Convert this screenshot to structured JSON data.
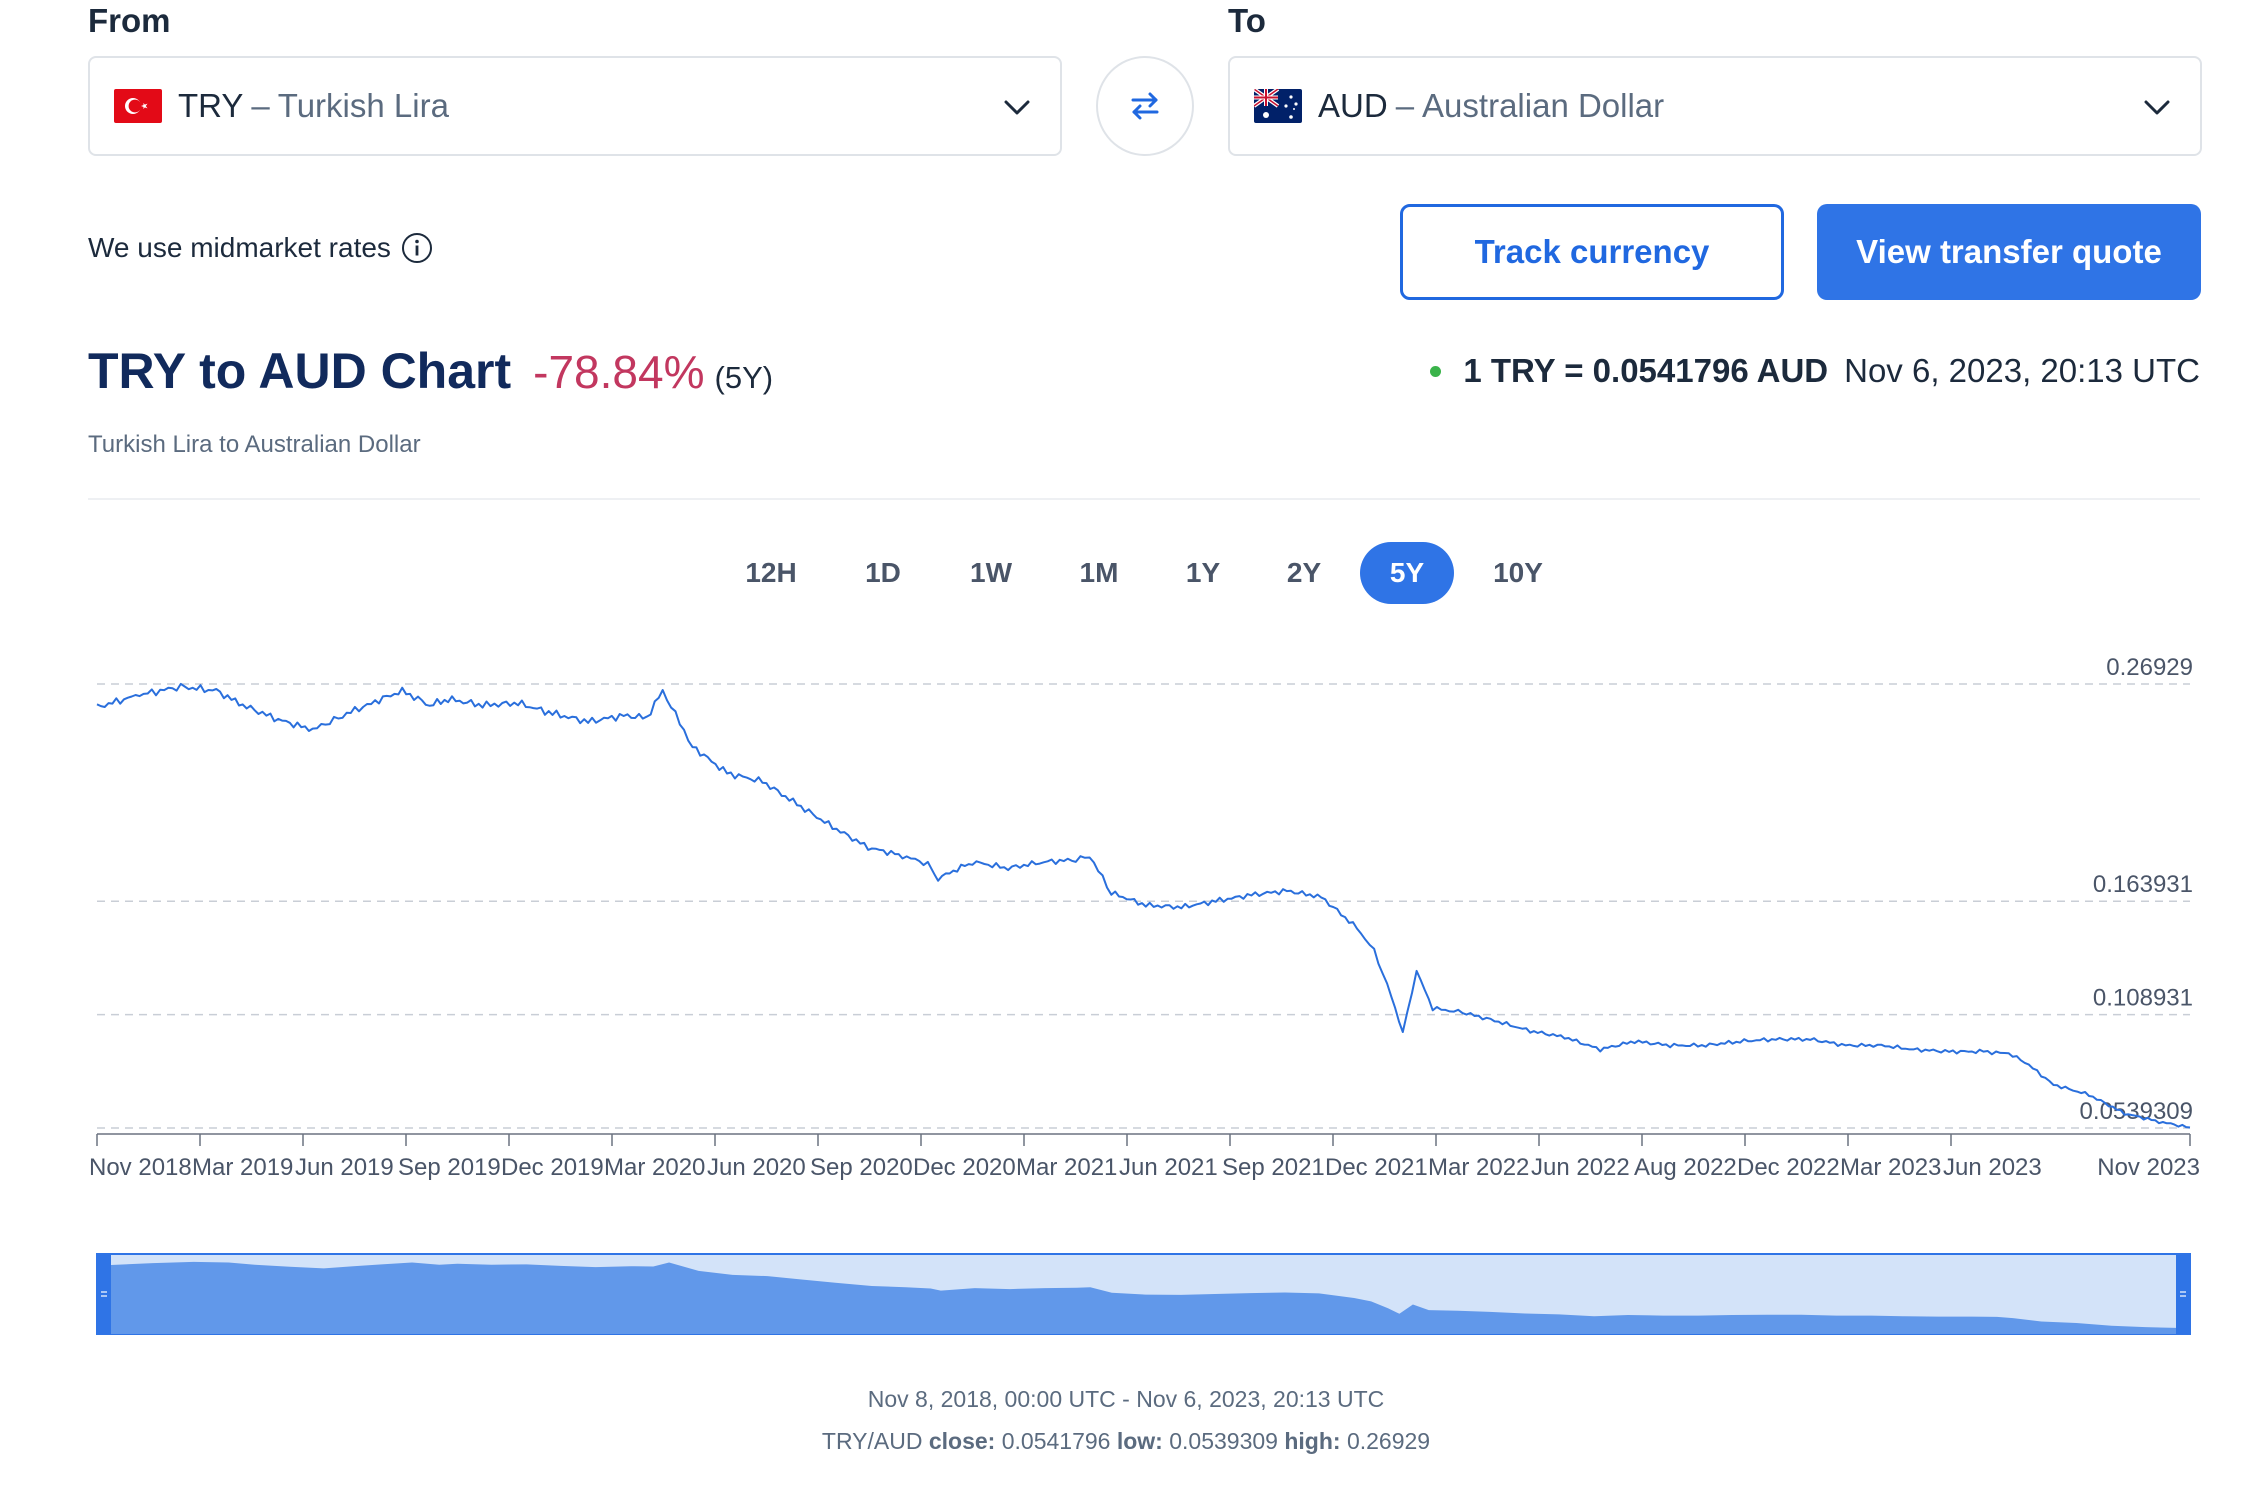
{
  "from": {
    "label": "From",
    "code": "TRY",
    "separator": "–",
    "name": "Turkish Lira",
    "flag": "turkey-flag-icon"
  },
  "to": {
    "label": "To",
    "code": "AUD",
    "separator": "–",
    "name": "Australian Dollar",
    "flag": "australia-flag-icon"
  },
  "swap_icon": "swap-arrows-icon",
  "midmarket_text": "We use midmarket rates",
  "buttons": {
    "track": "Track currency",
    "quote": "View transfer quote"
  },
  "header": {
    "title": "TRY to AUD Chart",
    "change": "-78.84%",
    "period": "(5Y)",
    "subtitle": "Turkish Lira to Australian Dollar",
    "rate": "1 TRY = 0.0541796 AUD",
    "rate_time": "Nov 6, 2023, 20:13 UTC"
  },
  "tabs": [
    "12H",
    "1D",
    "1W",
    "1M",
    "1Y",
    "2Y",
    "5Y",
    "10Y"
  ],
  "active_tab": "5Y",
  "colors": {
    "accent": "#2f74e6",
    "negative": "#c2375f",
    "live": "#3ab34a",
    "title": "#112a5c"
  },
  "footer": {
    "range": "Nov 8, 2018, 00:00 UTC - Nov 6, 2023, 20:13 UTC",
    "pair": "TRY/AUD",
    "close_label": "close:",
    "close": "0.0541796",
    "low_label": "low:",
    "low": "0.0539309",
    "high_label": "high:",
    "high": "0.26929"
  },
  "chart_data": {
    "type": "line",
    "x_ticks": [
      "Nov 2018",
      "Mar 2019",
      "Jun 2019",
      "Sep 2019",
      "Dec 2019",
      "Mar 2020",
      "Jun 2020",
      "Sep 2020",
      "Dec 2020",
      "Mar 2021",
      "Jun 2021",
      "Sep 2021",
      "Dec 2021",
      "Mar 2022",
      "Jun 2022",
      "Aug 2022",
      "Dec 2022",
      "Mar 2023",
      "Jun 2023",
      "Nov 2023"
    ],
    "y_ticks": [
      0.26929,
      0.163931,
      0.108931,
      0.0539309
    ],
    "grid": "dashed horizontal at y_ticks",
    "series": [
      {
        "x": [
          "2018-11-08",
          "2018-12-15",
          "2019-01-20",
          "2019-02-20",
          "2019-03-15",
          "2019-04-15",
          "2019-05-15",
          "2019-06-10",
          "2019-07-05",
          "2019-08-01",
          "2019-08-25",
          "2019-09-10",
          "2019-10-10",
          "2019-11-10",
          "2019-12-10",
          "2020-01-10",
          "2020-02-10",
          "2020-03-01",
          "2020-03-15",
          "2020-04-10",
          "2020-05-10",
          "2020-06-10",
          "2020-07-10",
          "2020-08-10",
          "2020-09-10",
          "2020-10-10",
          "2020-11-01",
          "2020-11-10",
          "2020-12-10",
          "2021-01-10",
          "2021-02-10",
          "2021-03-10",
          "2021-03-22",
          "2021-04-10",
          "2021-05-10",
          "2021-06-10",
          "2021-07-10",
          "2021-08-10",
          "2021-09-10",
          "2021-10-10",
          "2021-11-10",
          "2021-11-25",
          "2021-12-10",
          "2021-12-20",
          "2022-01-01",
          "2022-01-15",
          "2022-02-10",
          "2022-03-10",
          "2022-04-10",
          "2022-05-10",
          "2022-06-10",
          "2022-07-10",
          "2022-08-10",
          "2022-09-10",
          "2022-10-10",
          "2022-11-10",
          "2022-12-10",
          "2023-01-10",
          "2023-02-10",
          "2023-03-10",
          "2023-04-10",
          "2023-05-10",
          "2023-06-01",
          "2023-06-15",
          "2023-07-10",
          "2023-08-10",
          "2023-09-10",
          "2023-10-10",
          "2023-11-06"
        ],
        "y": [
          0.258,
          0.264,
          0.268,
          0.266,
          0.259,
          0.252,
          0.247,
          0.254,
          0.26,
          0.266,
          0.259,
          0.262,
          0.259,
          0.26,
          0.255,
          0.251,
          0.254,
          0.253,
          0.266,
          0.239,
          0.226,
          0.222,
          0.211,
          0.2,
          0.19,
          0.186,
          0.182,
          0.175,
          0.183,
          0.18,
          0.183,
          0.184,
          0.186,
          0.168,
          0.162,
          0.161,
          0.164,
          0.167,
          0.169,
          0.166,
          0.151,
          0.14,
          0.118,
          0.1,
          0.13,
          0.112,
          0.11,
          0.106,
          0.101,
          0.098,
          0.092,
          0.096,
          0.094,
          0.094,
          0.096,
          0.097,
          0.097,
          0.094,
          0.094,
          0.092,
          0.091,
          0.091,
          0.09,
          0.086,
          0.075,
          0.07,
          0.061,
          0.057,
          0.0541796
        ]
      }
    ],
    "ylim": [
      0.0539309,
      0.26929
    ],
    "low": 0.0539309,
    "high": 0.26929,
    "close": 0.0541796,
    "navigator": "shaded area overview with draggable handles"
  }
}
